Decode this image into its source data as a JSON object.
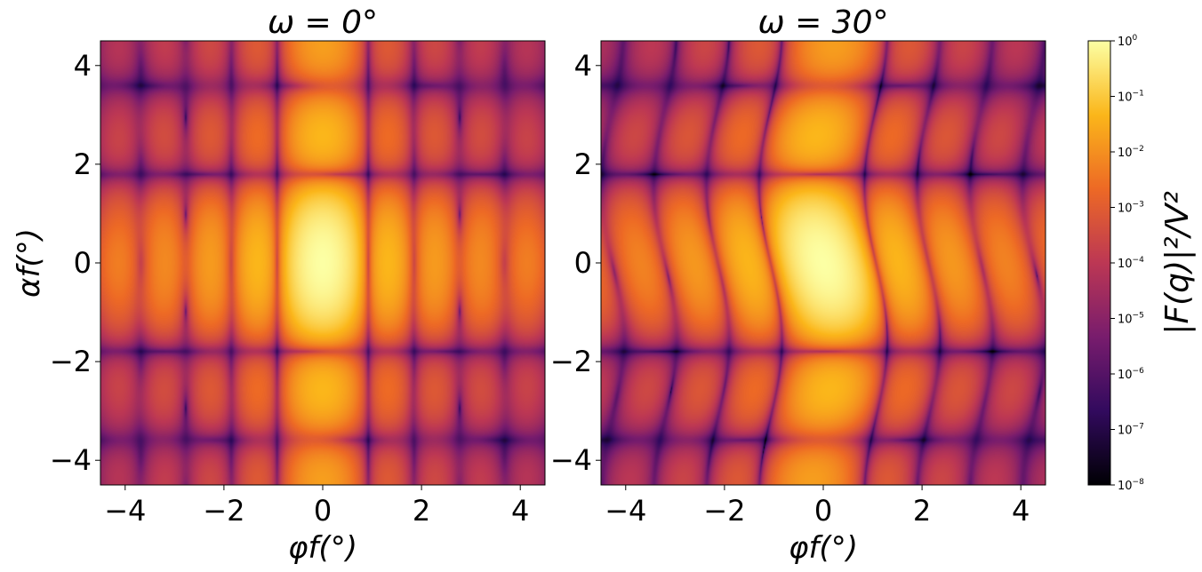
{
  "chart_data": [
    {
      "type": "heatmap",
      "title": "ω = 0°",
      "xlabel": "φf(°)",
      "ylabel": "αf(°)",
      "xlim": [
        -4.5,
        4.5
      ],
      "ylim": [
        -4.5,
        4.5
      ],
      "xticks": [
        -4,
        -2,
        0,
        2,
        4
      ],
      "yticks": [
        -4,
        -2,
        0,
        2,
        4
      ],
      "xtick_labels": [
        "−4",
        "−2",
        "0",
        "2",
        "4"
      ],
      "ytick_labels": [
        "−4",
        "−2",
        "0",
        "2",
        "4"
      ],
      "colormap": "inferno",
      "scale": "log",
      "zlim": [
        1e-08,
        1
      ],
      "omega_deg": 0,
      "peaks": [
        {
          "x": 0,
          "y": 0,
          "value": 1.0
        },
        {
          "x": 0,
          "y": 2,
          "value": 0.01
        },
        {
          "x": 0,
          "y": -2,
          "value": 0.01
        },
        {
          "x": 0,
          "y": 3.7,
          "value": 0.01
        },
        {
          "x": 0,
          "y": -3.7,
          "value": 0.01
        }
      ]
    },
    {
      "type": "heatmap",
      "title": "ω = 30°",
      "xlabel": "φf(°)",
      "ylabel": "",
      "xlim": [
        -4.5,
        4.5
      ],
      "ylim": [
        -4.5,
        4.5
      ],
      "xticks": [
        -4,
        -2,
        0,
        2,
        4
      ],
      "yticks": [
        -4,
        -2,
        0,
        2,
        4
      ],
      "xtick_labels": [
        "−4",
        "−2",
        "0",
        "2",
        "4"
      ],
      "ytick_labels": [
        "−4",
        "−2",
        "0",
        "2",
        "4"
      ],
      "colormap": "inferno",
      "scale": "log",
      "zlim": [
        1e-08,
        1
      ],
      "omega_deg": 30,
      "peaks": [
        {
          "x": 0,
          "y": 0,
          "value": 1.0
        },
        {
          "x": 0,
          "y": 2,
          "value": 0.01
        },
        {
          "x": 0,
          "y": -2,
          "value": 0.01
        },
        {
          "x": 0,
          "y": 3.7,
          "value": 0.01
        },
        {
          "x": 0,
          "y": -3.7,
          "value": 0.01
        }
      ]
    }
  ],
  "colorbar": {
    "label": "|F(q)|²/V²",
    "scale": "log",
    "ticks": [
      {
        "base": "10",
        "exp": "0"
      },
      {
        "base": "10",
        "exp": "−1"
      },
      {
        "base": "10",
        "exp": "−2"
      },
      {
        "base": "10",
        "exp": "−3"
      },
      {
        "base": "10",
        "exp": "−4"
      },
      {
        "base": "10",
        "exp": "−5"
      },
      {
        "base": "10",
        "exp": "−6"
      },
      {
        "base": "10",
        "exp": "−7"
      },
      {
        "base": "10",
        "exp": "−8"
      }
    ],
    "stops": [
      "#000004",
      "#320a5e",
      "#781c6d",
      "#bc3754",
      "#ed6925",
      "#fbb61a",
      "#fcffa4"
    ]
  }
}
